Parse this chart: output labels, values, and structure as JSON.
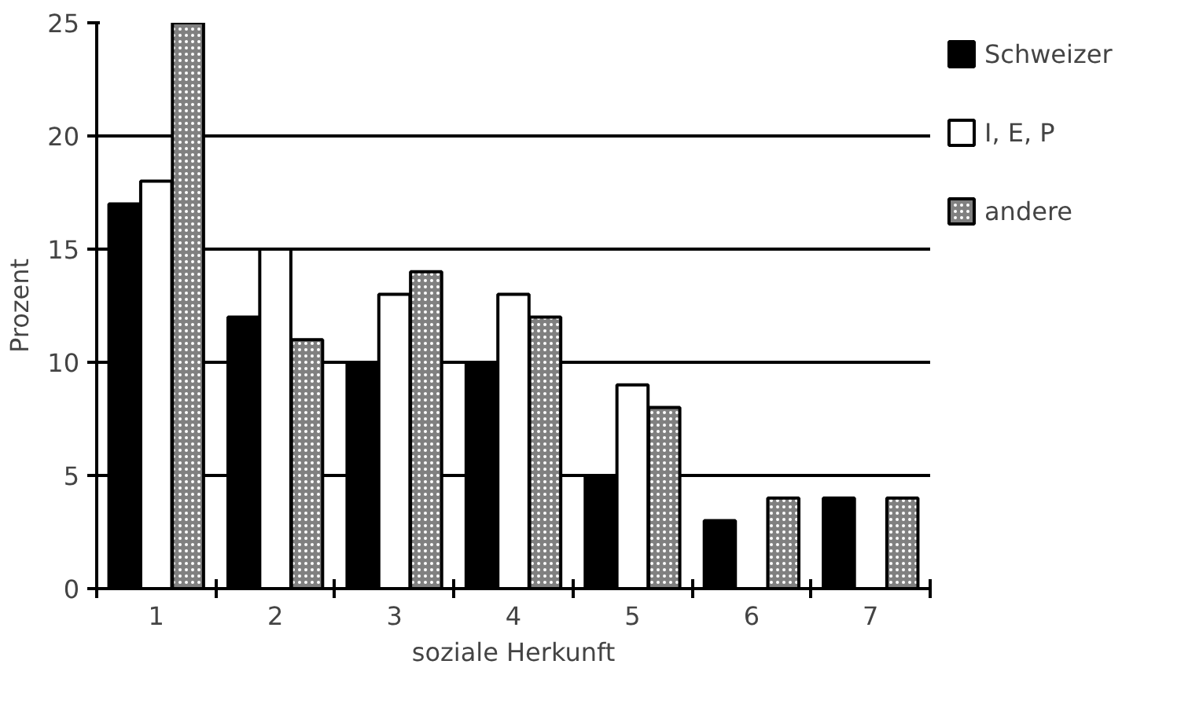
{
  "chart_data": {
    "type": "bar",
    "xlabel": "soziale Herkunft",
    "ylabel": "Prozent",
    "categories": [
      "1",
      "2",
      "3",
      "4",
      "5",
      "6",
      "7"
    ],
    "series": [
      {
        "name": "Schweizer",
        "color": "#000000",
        "values": [
          17,
          12,
          10,
          10,
          5,
          3,
          4
        ]
      },
      {
        "name": "I, E, P",
        "color": "#ffffff",
        "values": [
          18,
          15,
          13,
          13,
          9,
          0,
          0
        ]
      },
      {
        "name": "andere",
        "color": "#808080",
        "values": [
          25,
          11,
          14,
          12,
          8,
          4,
          4
        ]
      }
    ],
    "ylim": [
      0,
      25
    ],
    "yticks": [
      0,
      5,
      10,
      15,
      20,
      25
    ],
    "grid": "y",
    "legend": "right"
  }
}
